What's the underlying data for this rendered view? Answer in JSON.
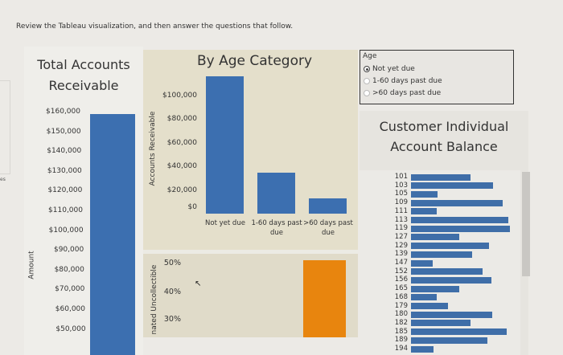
{
  "instruction": "Review the Tableau visualization, and then answer the questions that follow.",
  "edge_fragment": "es",
  "total_ar": {
    "title_line1": "Total Accounts",
    "title_line2": "Receivable",
    "axis_label": "Amount",
    "ticks": [
      "$160,000",
      "$150,000",
      "$140,000",
      "$130,000",
      "$120,000",
      "$110,000",
      "$100,000",
      "$90,000",
      "$80,000",
      "$70,000",
      "$60,000",
      "$50,000"
    ],
    "bar_color": "#3c6fb0"
  },
  "chart_data": [
    {
      "type": "bar",
      "title": "Total Accounts Receivable",
      "ylabel": "Amount",
      "categories": [
        ""
      ],
      "values": [
        160000
      ],
      "ylim": [
        50000,
        160000
      ]
    },
    {
      "type": "bar",
      "title": "By Age Category",
      "ylabel": "Accounts Receivable",
      "y_ticks": [
        "$100,000",
        "$80,000",
        "$60,000",
        "$40,000",
        "$20,000",
        "$0"
      ],
      "categories": [
        "Not yet due",
        "1-60 days past due",
        ">60 days past due"
      ],
      "values": [
        111000,
        33000,
        12000
      ],
      "ylim": [
        0,
        110000
      ],
      "color": "#3c6fb0"
    },
    {
      "type": "bar",
      "ylabel": "nated Uncollectible",
      "y_ticks": [
        "50%",
        "40%",
        "30%"
      ],
      "categories": [
        "Not yet due",
        "1-60 days past due",
        ">60 days past due"
      ],
      "values": [
        null,
        null,
        51
      ],
      "ylim": [
        25,
        52
      ],
      "color": "#e8850e"
    },
    {
      "type": "bar",
      "orientation": "horizontal",
      "title": "Customer Individual Account Balance",
      "categories": [
        "101",
        "103",
        "105",
        "109",
        "111",
        "113",
        "119",
        "127",
        "129",
        "139",
        "147",
        "152",
        "156",
        "165",
        "168",
        "179",
        "180",
        "182",
        "185",
        "189",
        "194"
      ],
      "values": [
        0.6,
        0.83,
        0.27,
        0.93,
        0.26,
        0.98,
        1.0,
        0.49,
        0.79,
        0.62,
        0.22,
        0.72,
        0.81,
        0.49,
        0.26,
        0.37,
        0.82,
        0.6,
        0.97,
        0.77,
        0.23
      ],
      "value_scale": "relative (no axis shown)",
      "color": "#3f6ea8"
    }
  ],
  "by_age": {
    "title": "By Age Category",
    "axis_label": "Accounts Receivable",
    "categories": [
      "Not yet due",
      "1-60 days past due",
      ">60 days past due"
    ],
    "ticks": [
      "$100,000",
      "$80,000",
      "$60,000",
      "$40,000",
      "$20,000",
      "$0"
    ]
  },
  "uncollectible": {
    "axis_label": "nated Uncollectible",
    "ticks": [
      "50%",
      "40%",
      "30%"
    ]
  },
  "legend": {
    "title": "Age",
    "options": [
      {
        "label": "Not yet due",
        "selected": true
      },
      {
        "label": "1-60 days past due",
        "selected": false
      },
      {
        "label": ">60 days past due",
        "selected": false
      }
    ]
  },
  "customer": {
    "title_line1": "Customer Individual",
    "title_line2": "Account Balance"
  }
}
